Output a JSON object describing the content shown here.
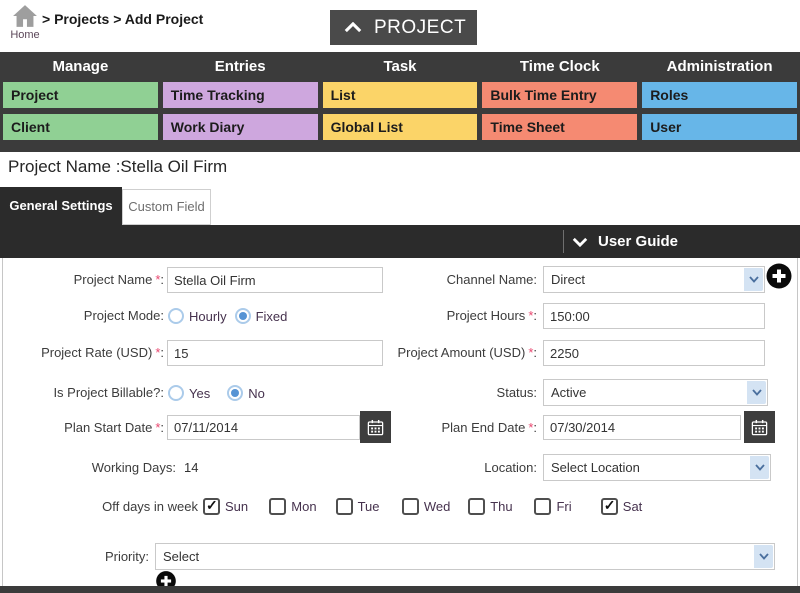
{
  "colors": {
    "nav_background": "#3b3b3b",
    "dark_bar": "#2b2b2b",
    "module_toggle_background": "#4a4a4a",
    "required_mark": "#e8476f",
    "radio_checked": "#5593d4",
    "select_arrow_strip": "#d4e3f3",
    "calendar_button": "#3d3d3d"
  },
  "topbar": {
    "home_label": "Home",
    "breadcrumb": "> Projects > Add Project",
    "module_toggle": "PROJECT"
  },
  "nav": {
    "columns": [
      {
        "header": "Manage",
        "color": "#90d094",
        "items": [
          "Project",
          "Client"
        ]
      },
      {
        "header": "Entries",
        "color": "#cea7de",
        "items": [
          "Time Tracking",
          "Work Diary"
        ]
      },
      {
        "header": "Task",
        "color": "#fbd468",
        "items": [
          "List",
          "Global List"
        ]
      },
      {
        "header": "Time Clock",
        "color": "#f58a72",
        "items": [
          "Bulk Time Entry",
          "Time Sheet"
        ]
      },
      {
        "header": "Administration",
        "color": "#67b6e8",
        "items": [
          "Roles",
          "User"
        ]
      }
    ]
  },
  "page": {
    "title": "Project Name :Stella Oil Firm"
  },
  "tabs": {
    "general": "General Settings",
    "custom": "Custom Field"
  },
  "user_guide": {
    "label": "User Guide"
  },
  "form": {
    "required_mark": "*",
    "colon": ":",
    "project_name": {
      "label": "Project Name",
      "value": "Stella Oil Firm"
    },
    "channel_name": {
      "label": "Channel Name:",
      "value": "Direct"
    },
    "project_mode": {
      "label": "Project Mode:",
      "options": [
        {
          "label": "Hourly",
          "selected": false
        },
        {
          "label": "Fixed",
          "selected": true
        }
      ]
    },
    "project_hours": {
      "label": "Project Hours",
      "value": "150:00"
    },
    "project_rate": {
      "label": "Project Rate (USD)",
      "value": "15"
    },
    "project_amount": {
      "label": "Project Amount (USD)",
      "value": "2250"
    },
    "billable": {
      "label": "Is Project Billable?:",
      "options": [
        {
          "label": "Yes",
          "selected": false
        },
        {
          "label": "No",
          "selected": true
        }
      ]
    },
    "status": {
      "label": "Status:",
      "value": "Active"
    },
    "plan_start_date": {
      "label": "Plan Start Date",
      "value": "07/11/2014"
    },
    "plan_end_date": {
      "label": "Plan End Date",
      "value": "07/30/2014"
    },
    "working_days": {
      "label": "Working Days:",
      "value": "14"
    },
    "location": {
      "label": "Location:",
      "value": "Select Location"
    },
    "off_days": {
      "label": "Off days in week",
      "days": [
        {
          "label": "Sun",
          "checked": true
        },
        {
          "label": "Mon",
          "checked": false
        },
        {
          "label": "Tue",
          "checked": false
        },
        {
          "label": "Wed",
          "checked": false
        },
        {
          "label": "Thu",
          "checked": false
        },
        {
          "label": "Fri",
          "checked": false
        },
        {
          "label": "Sat",
          "checked": true
        }
      ]
    },
    "priority": {
      "label": "Priority:",
      "value": "Select"
    }
  }
}
